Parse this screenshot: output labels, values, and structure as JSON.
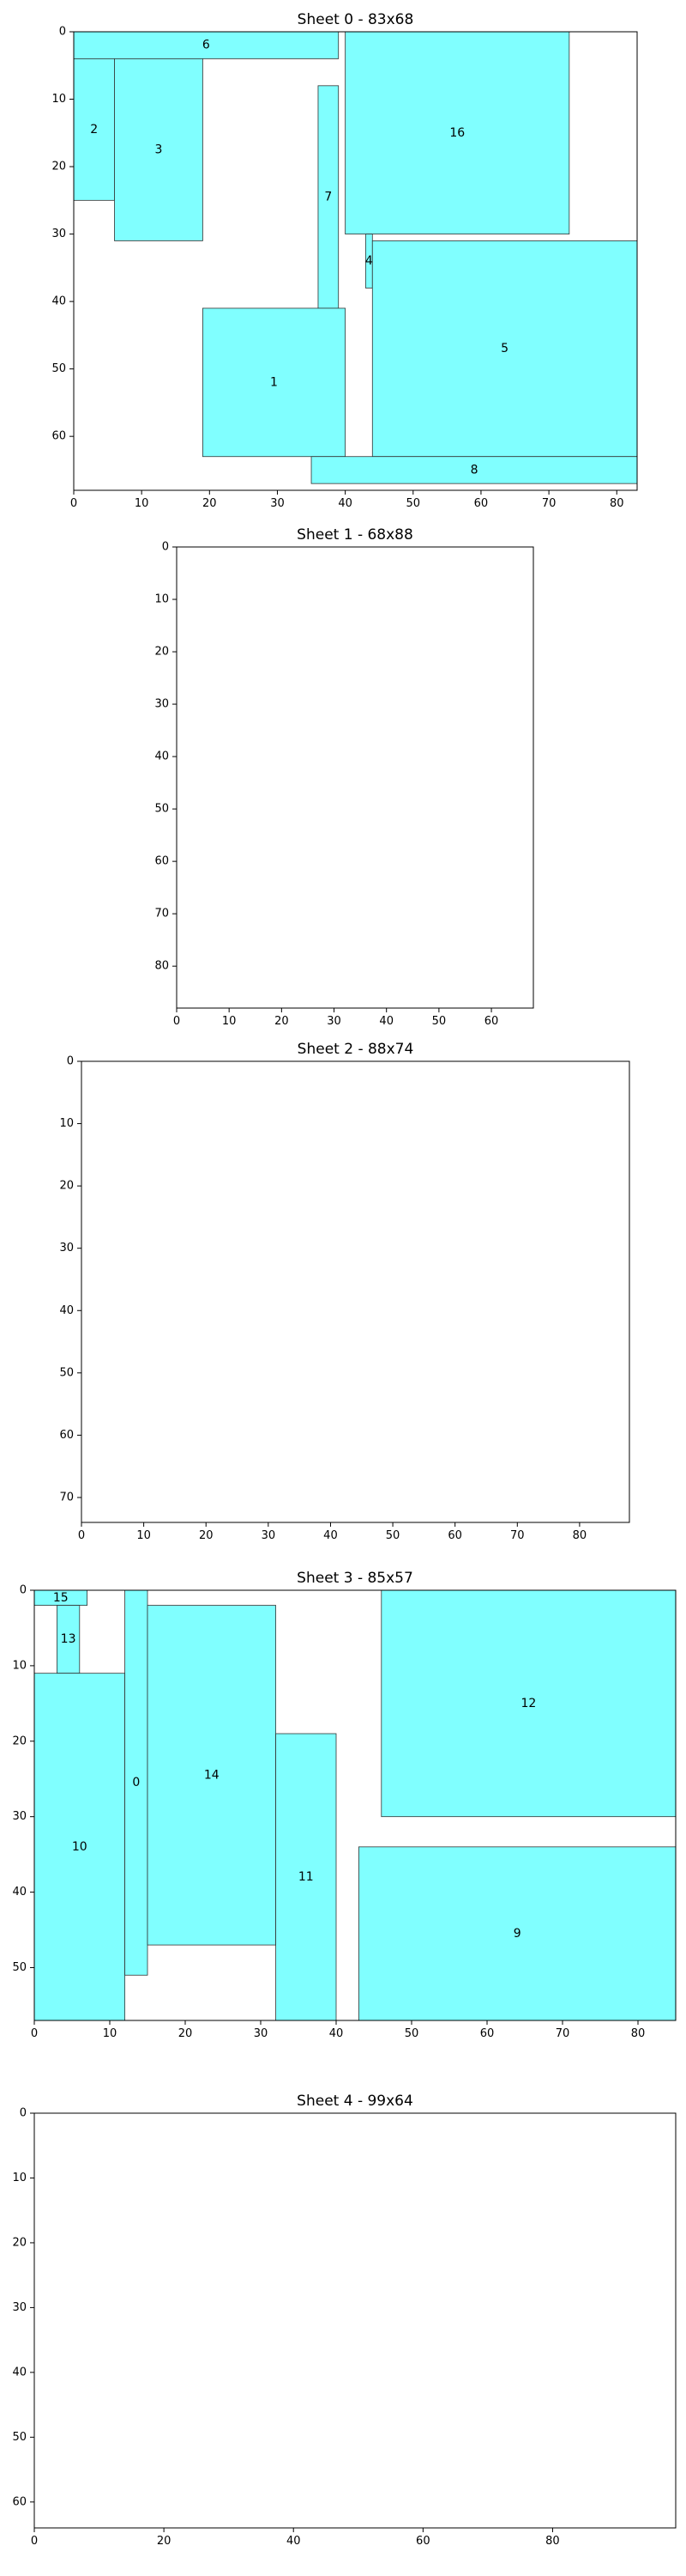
{
  "colors": {
    "fill": "#80ffff",
    "stroke": "#333333"
  },
  "chart_data": [
    {
      "type": "rect-packing",
      "title": "Sheet 0 - 83x68",
      "width": 83,
      "height": 68,
      "xticks": [
        0,
        10,
        20,
        30,
        40,
        50,
        60,
        70,
        80
      ],
      "yticks": [
        0,
        10,
        20,
        30,
        40,
        50,
        60
      ],
      "rects": [
        {
          "id": "6",
          "x": 0,
          "y": 0,
          "w": 39,
          "h": 4
        },
        {
          "id": "2",
          "x": 0,
          "y": 4,
          "w": 6,
          "h": 21
        },
        {
          "id": "3",
          "x": 6,
          "y": 4,
          "w": 13,
          "h": 27
        },
        {
          "id": "7",
          "x": 36,
          "y": 8,
          "w": 3,
          "h": 33
        },
        {
          "id": "16",
          "x": 40,
          "y": 0,
          "w": 33,
          "h": 30
        },
        {
          "id": "4",
          "x": 43,
          "y": 30,
          "w": 1,
          "h": 8
        },
        {
          "id": "5",
          "x": 44,
          "y": 31,
          "w": 39,
          "h": 32
        },
        {
          "id": "1",
          "x": 19,
          "y": 41,
          "w": 21,
          "h": 22
        },
        {
          "id": "8",
          "x": 35,
          "y": 63,
          "w": 48,
          "h": 4
        }
      ]
    },
    {
      "type": "rect-packing",
      "title": "Sheet 1 - 68x88",
      "width": 68,
      "height": 88,
      "xticks": [
        0,
        10,
        20,
        30,
        40,
        50,
        60
      ],
      "yticks": [
        0,
        10,
        20,
        30,
        40,
        50,
        60,
        70,
        80
      ],
      "rects": []
    },
    {
      "type": "rect-packing",
      "title": "Sheet 2 - 88x74",
      "width": 88,
      "height": 74,
      "xticks": [
        0,
        10,
        20,
        30,
        40,
        50,
        60,
        70,
        80
      ],
      "yticks": [
        0,
        10,
        20,
        30,
        40,
        50,
        60,
        70
      ],
      "rects": []
    },
    {
      "type": "rect-packing",
      "title": "Sheet 3 - 85x57",
      "width": 85,
      "height": 57,
      "xticks": [
        0,
        10,
        20,
        30,
        40,
        50,
        60,
        70,
        80
      ],
      "yticks": [
        0,
        10,
        20,
        30,
        40,
        50
      ],
      "rects": [
        {
          "id": "15",
          "x": 0,
          "y": 0,
          "w": 7,
          "h": 2
        },
        {
          "id": "13",
          "x": 3,
          "y": 2,
          "w": 3,
          "h": 9
        },
        {
          "id": "10",
          "x": 0,
          "y": 11,
          "w": 12,
          "h": 46
        },
        {
          "id": "0",
          "x": 12,
          "y": 0,
          "w": 3,
          "h": 51
        },
        {
          "id": "14",
          "x": 15,
          "y": 2,
          "w": 17,
          "h": 45
        },
        {
          "id": "11",
          "x": 32,
          "y": 19,
          "w": 8,
          "h": 38
        },
        {
          "id": "12",
          "x": 46,
          "y": 0,
          "w": 39,
          "h": 30
        },
        {
          "id": "9",
          "x": 43,
          "y": 34,
          "w": 42,
          "h": 23
        }
      ]
    },
    {
      "type": "rect-packing",
      "title": "Sheet 4 - 99x64",
      "width": 99,
      "height": 64,
      "xticks": [
        0,
        20,
        40,
        60,
        80
      ],
      "yticks": [
        0,
        10,
        20,
        30,
        40,
        50,
        60
      ],
      "rects": []
    }
  ]
}
